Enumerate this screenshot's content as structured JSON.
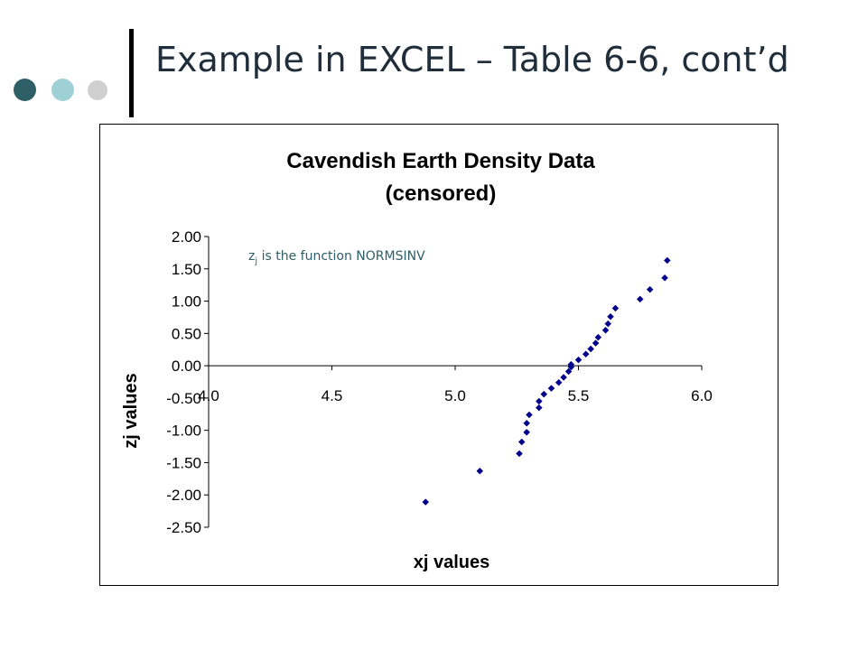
{
  "slide": {
    "title": "Example in EXCEL – Table 6-6, cont’d",
    "decor_dots": [
      "#2f5f66",
      "#9fd0d5",
      "#cfcfcf"
    ]
  },
  "chart_data": {
    "type": "scatter",
    "title": [
      "Cavendish Earth Density Data",
      "(censored)"
    ],
    "xlabel": "xj values",
    "ylabel": "zj values",
    "annotation": {
      "main": "z",
      "sub": "j",
      "rest": " is the function NORMSINV"
    },
    "xlim": [
      4.0,
      6.0
    ],
    "ylim": [
      -2.5,
      2.0
    ],
    "xticks": [
      "4.0",
      "4.5",
      "5.0",
      "5.5",
      "6.0"
    ],
    "yticks": [
      "2.00",
      "1.50",
      "1.00",
      "0.50",
      "0.00",
      "-0.50",
      "-1.00",
      "-1.50",
      "-2.00",
      "-2.50"
    ],
    "marker_color": "#00008b",
    "series": [
      {
        "points": [
          [
            4.88,
            -2.11
          ],
          [
            5.1,
            -1.63
          ],
          [
            5.26,
            -1.36
          ],
          [
            5.27,
            -1.18
          ],
          [
            5.29,
            -1.03
          ],
          [
            5.29,
            -0.89
          ],
          [
            5.3,
            -0.76
          ],
          [
            5.34,
            -0.65
          ],
          [
            5.34,
            -0.55
          ],
          [
            5.36,
            -0.44
          ],
          [
            5.39,
            -0.35
          ],
          [
            5.42,
            -0.26
          ],
          [
            5.44,
            -0.18
          ],
          [
            5.46,
            -0.09
          ],
          [
            5.47,
            -0.02
          ],
          [
            5.47,
            0.02
          ],
          [
            5.5,
            0.09
          ],
          [
            5.53,
            0.18
          ],
          [
            5.55,
            0.26
          ],
          [
            5.57,
            0.35
          ],
          [
            5.58,
            0.44
          ],
          [
            5.61,
            0.55
          ],
          [
            5.62,
            0.65
          ],
          [
            5.63,
            0.76
          ],
          [
            5.65,
            0.89
          ],
          [
            5.75,
            1.03
          ],
          [
            5.79,
            1.18
          ],
          [
            5.85,
            1.36
          ],
          [
            5.86,
            1.63
          ]
        ]
      }
    ]
  }
}
